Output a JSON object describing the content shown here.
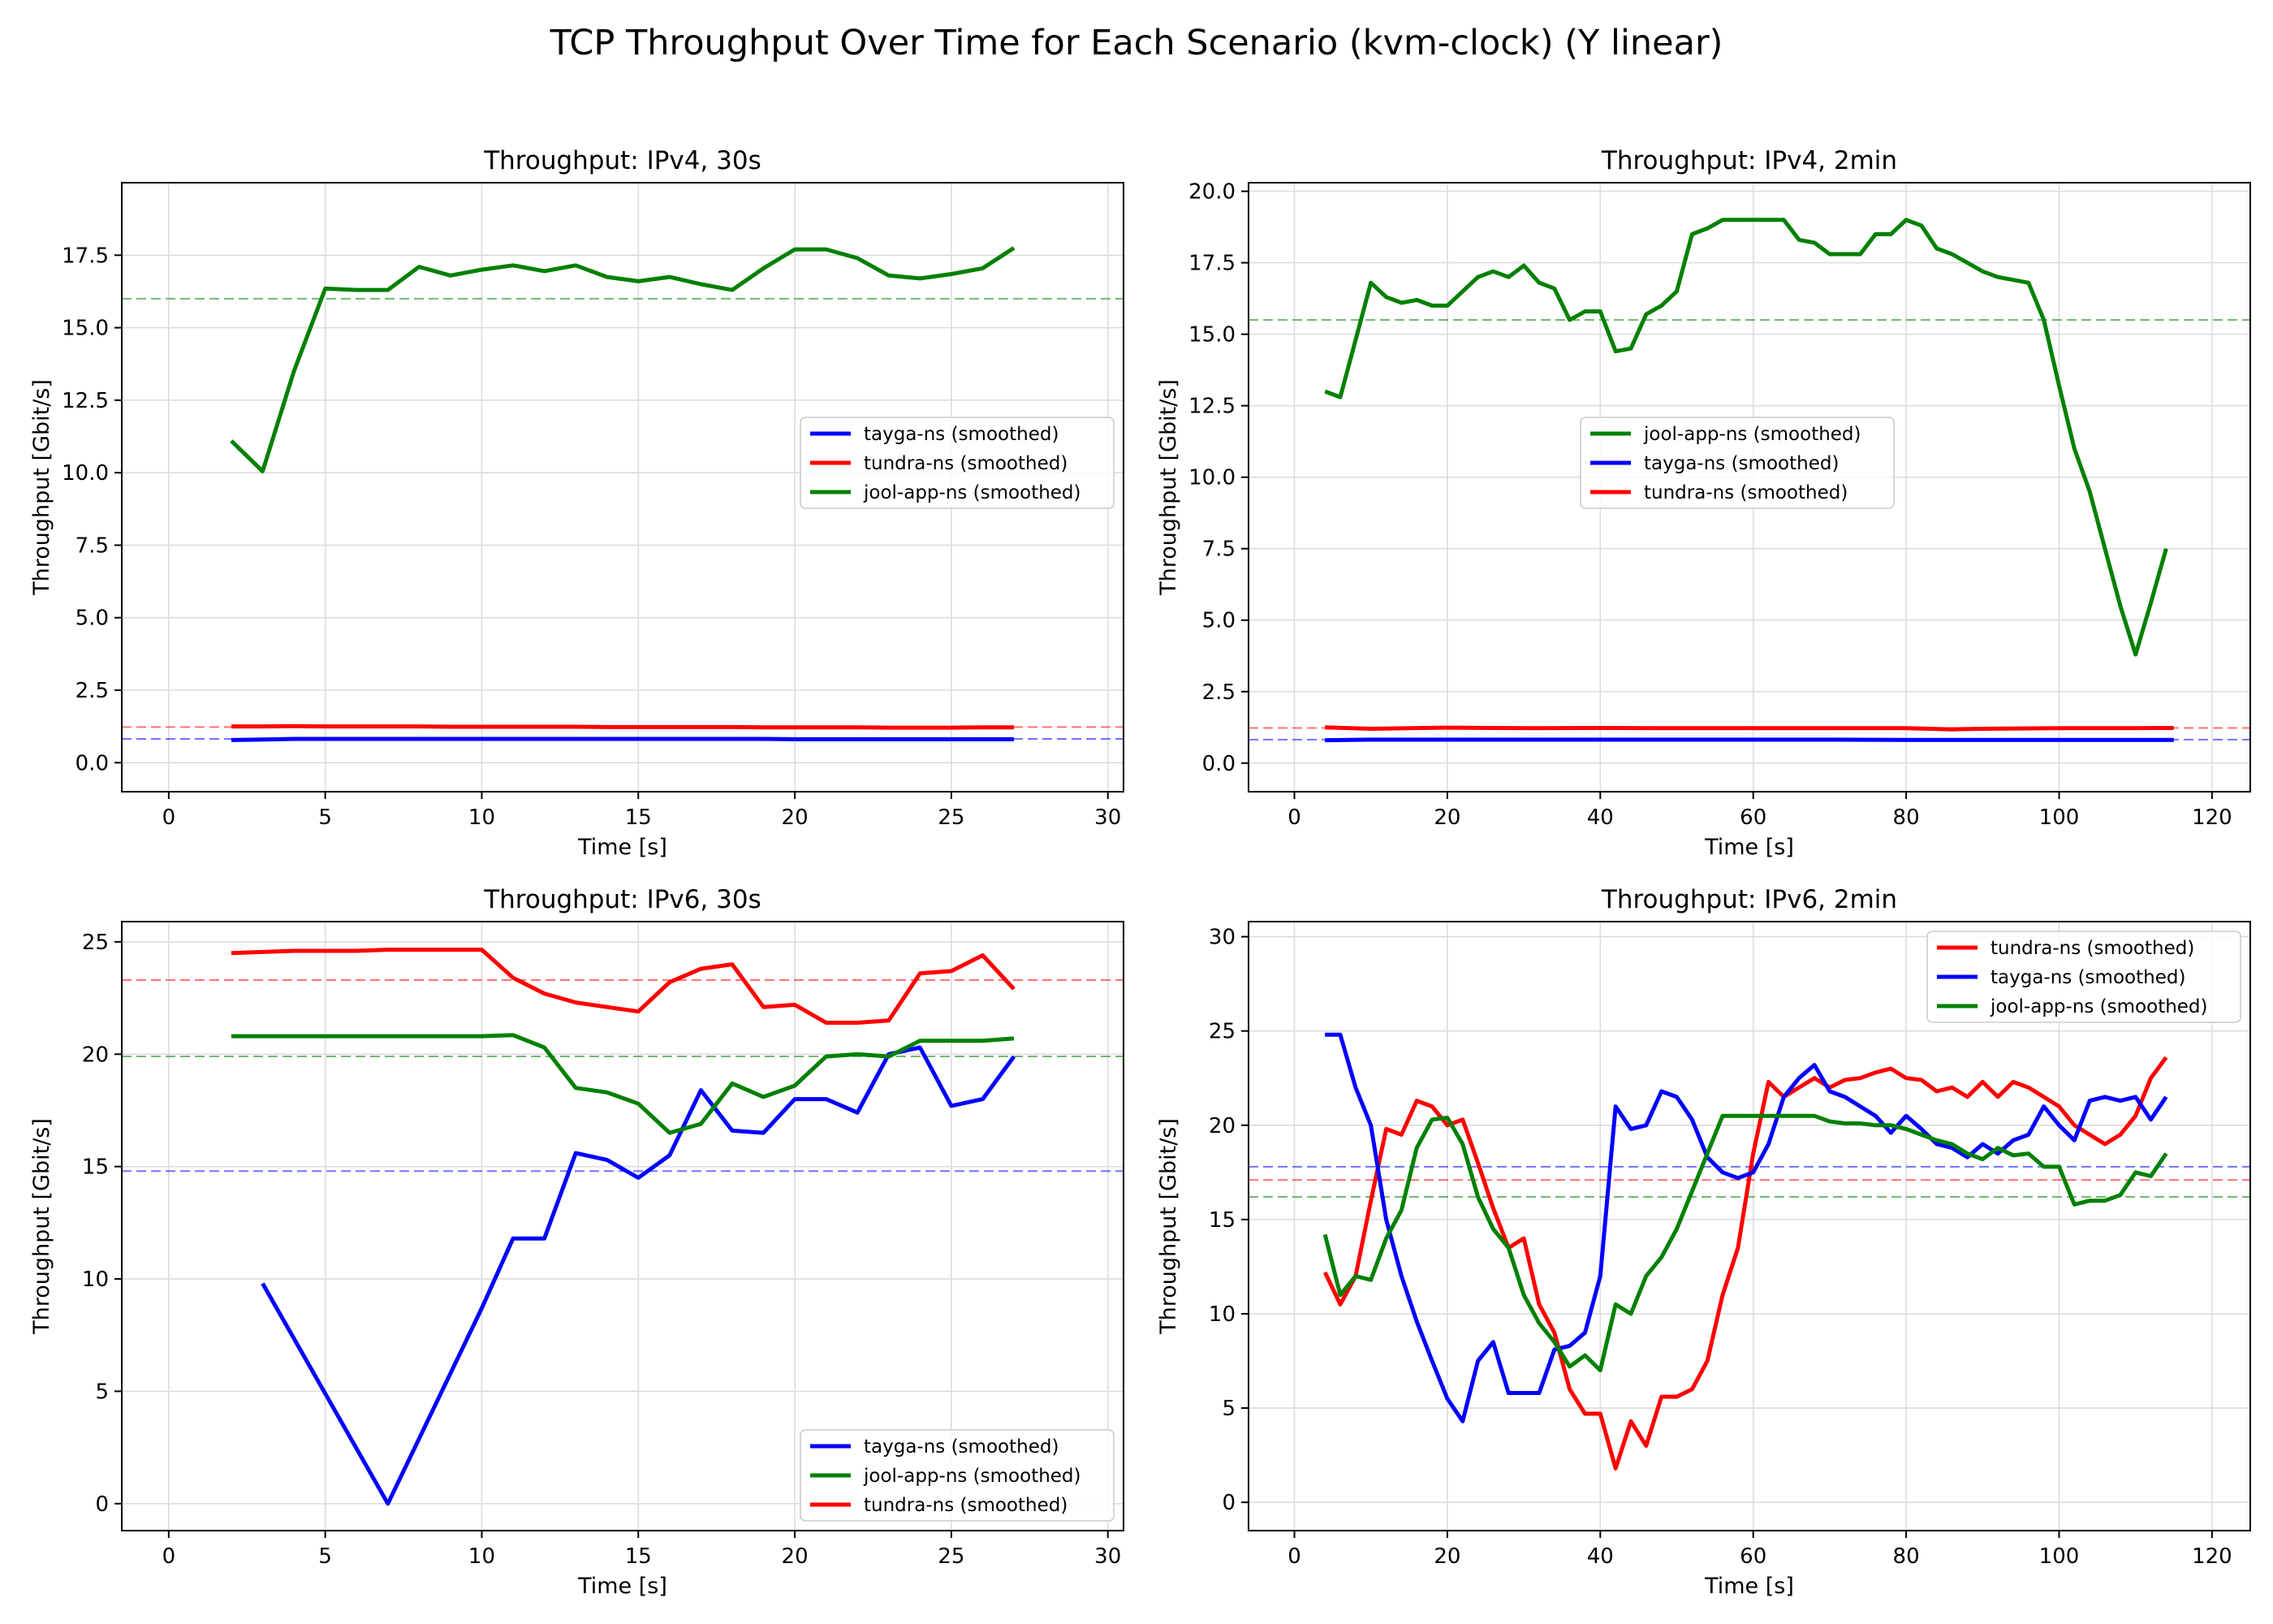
{
  "figure": {
    "suptitle": "TCP Throughput Over Time for Each Scenario (kvm-clock) (Y linear)"
  },
  "colors": {
    "tayga": "#0000ff",
    "tundra": "#ff0000",
    "jool": "#008000"
  },
  "chart_data": [
    {
      "type": "line",
      "title": "Throughput: IPv4, 30s",
      "xlabel": "Time [s]",
      "ylabel": "Throughput [Gbit/s]",
      "xlim": [
        -1.5,
        30.5
      ],
      "ylim": [
        -1,
        20
      ],
      "xticks": [
        0,
        5,
        10,
        15,
        20,
        25,
        30
      ],
      "yticks": [
        0.0,
        2.5,
        5.0,
        7.5,
        10.0,
        12.5,
        15.0,
        17.5
      ],
      "ytick_decimals": 1,
      "grid": true,
      "legend_placement": "center-right",
      "legend_order": [
        "tayga",
        "tundra",
        "jool"
      ],
      "series": [
        {
          "key": "tayga",
          "name": "tayga-ns (smoothed)",
          "color": "#0000ff",
          "x": [
            2,
            3,
            4,
            5,
            6,
            7,
            8,
            9,
            10,
            11,
            12,
            13,
            14,
            15,
            16,
            17,
            18,
            19,
            20,
            21,
            22,
            23,
            24,
            25,
            26,
            27
          ],
          "y": [
            0.78,
            0.8,
            0.82,
            0.82,
            0.82,
            0.82,
            0.82,
            0.82,
            0.82,
            0.82,
            0.82,
            0.82,
            0.82,
            0.82,
            0.82,
            0.82,
            0.82,
            0.82,
            0.81,
            0.81,
            0.81,
            0.81,
            0.81,
            0.81,
            0.81,
            0.81
          ],
          "mean": 0.82
        },
        {
          "key": "tundra",
          "name": "tundra-ns (smoothed)",
          "color": "#ff0000",
          "x": [
            2,
            3,
            4,
            5,
            6,
            7,
            8,
            9,
            10,
            11,
            12,
            13,
            14,
            15,
            16,
            17,
            18,
            19,
            20,
            21,
            22,
            23,
            24,
            25,
            26,
            27
          ],
          "y": [
            1.25,
            1.25,
            1.26,
            1.25,
            1.25,
            1.25,
            1.25,
            1.24,
            1.24,
            1.24,
            1.24,
            1.24,
            1.23,
            1.23,
            1.23,
            1.23,
            1.23,
            1.22,
            1.22,
            1.22,
            1.22,
            1.21,
            1.21,
            1.21,
            1.22,
            1.22
          ],
          "mean": 1.23
        },
        {
          "key": "jool",
          "name": "jool-app-ns (smoothed)",
          "color": "#008000",
          "x": [
            2,
            3,
            4,
            5,
            6,
            7,
            8,
            9,
            10,
            11,
            12,
            13,
            14,
            15,
            16,
            17,
            18,
            19,
            20,
            21,
            22,
            23,
            24,
            25,
            26,
            27
          ],
          "y": [
            11.1,
            10.05,
            13.5,
            16.35,
            16.3,
            16.3,
            17.1,
            16.8,
            17.0,
            17.15,
            16.95,
            17.15,
            16.75,
            16.6,
            16.75,
            16.5,
            16.3,
            17.05,
            17.7,
            17.7,
            17.4,
            16.8,
            16.7,
            16.85,
            17.05,
            17.75
          ],
          "mean": 16.0
        }
      ]
    },
    {
      "type": "line",
      "title": "Throughput: IPv4, 2min",
      "xlabel": "Time [s]",
      "ylabel": "Throughput [Gbit/s]",
      "xlim": [
        -6,
        125
      ],
      "ylim": [
        -1,
        20.3
      ],
      "xticks": [
        0,
        20,
        40,
        60,
        80,
        100,
        120
      ],
      "yticks": [
        0.0,
        2.5,
        5.0,
        7.5,
        10.0,
        12.5,
        15.0,
        17.5,
        20.0
      ],
      "ytick_decimals": 1,
      "grid": true,
      "legend_placement": "center",
      "legend_order": [
        "jool",
        "tayga",
        "tundra"
      ],
      "series": [
        {
          "key": "jool",
          "name": "jool-app-ns (smoothed)",
          "color": "#008000",
          "x": [
            4,
            6,
            8,
            10,
            12,
            14,
            16,
            18,
            20,
            22,
            24,
            26,
            28,
            30,
            32,
            34,
            36,
            38,
            40,
            42,
            44,
            46,
            48,
            50,
            52,
            54,
            56,
            58,
            60,
            62,
            64,
            66,
            68,
            70,
            72,
            74,
            76,
            78,
            80,
            82,
            84,
            86,
            88,
            90,
            92,
            94,
            96,
            98,
            100,
            102,
            104,
            106,
            108,
            110,
            112,
            114
          ],
          "y": [
            13.0,
            12.8,
            14.8,
            16.8,
            16.3,
            16.1,
            16.2,
            16.0,
            16.0,
            16.5,
            17.0,
            17.2,
            17.0,
            17.4,
            16.8,
            16.6,
            15.5,
            15.8,
            15.8,
            14.4,
            14.5,
            15.7,
            16.0,
            16.5,
            18.5,
            18.7,
            19.0,
            19.0,
            19.0,
            19.0,
            19.0,
            18.3,
            18.2,
            17.8,
            17.8,
            17.8,
            18.5,
            18.5,
            19.0,
            18.8,
            18.0,
            17.8,
            17.5,
            17.2,
            17.0,
            16.9,
            16.8,
            15.5,
            13.2,
            11.0,
            9.5,
            7.5,
            5.5,
            3.8,
            5.6,
            7.5
          ],
          "mean": 15.5
        },
        {
          "key": "tayga",
          "name": "tayga-ns (smoothed)",
          "color": "#0000ff",
          "x": [
            4,
            10,
            20,
            30,
            40,
            50,
            60,
            70,
            80,
            90,
            100,
            110,
            115
          ],
          "y": [
            0.8,
            0.82,
            0.82,
            0.82,
            0.82,
            0.82,
            0.82,
            0.82,
            0.81,
            0.81,
            0.81,
            0.81,
            0.81
          ],
          "mean": 0.82
        },
        {
          "key": "tundra",
          "name": "tundra-ns (smoothed)",
          "color": "#ff0000",
          "x": [
            4,
            10,
            20,
            30,
            40,
            50,
            60,
            70,
            80,
            86,
            90,
            100,
            110,
            115
          ],
          "y": [
            1.25,
            1.2,
            1.24,
            1.22,
            1.23,
            1.22,
            1.22,
            1.22,
            1.22,
            1.18,
            1.2,
            1.22,
            1.22,
            1.23
          ],
          "mean": 1.23
        }
      ]
    },
    {
      "type": "line",
      "title": "Throughput: IPv6, 30s",
      "xlabel": "Time [s]",
      "ylabel": "Throughput [Gbit/s]",
      "xlim": [
        -1.5,
        30.5
      ],
      "ylim": [
        -1.2,
        25.9
      ],
      "xticks": [
        0,
        5,
        10,
        15,
        20,
        25,
        30
      ],
      "yticks": [
        0,
        5,
        10,
        15,
        20,
        25
      ],
      "ytick_decimals": 0,
      "grid": true,
      "legend_placement": "bottom-right",
      "legend_order": [
        "tayga",
        "jool",
        "tundra"
      ],
      "series": [
        {
          "key": "tayga",
          "name": "tayga-ns (smoothed)",
          "color": "#0000ff",
          "x": [
            3,
            7,
            10,
            11,
            12,
            13,
            14,
            15,
            16,
            17,
            18,
            19,
            20,
            21,
            22,
            23,
            24,
            25,
            26,
            27
          ],
          "y": [
            9.8,
            0.0,
            8.7,
            11.8,
            11.8,
            15.6,
            15.3,
            14.5,
            15.5,
            18.4,
            16.6,
            16.5,
            18.0,
            18.0,
            17.4,
            20.0,
            20.3,
            17.7,
            18.0,
            19.9
          ],
          "mean": 14.8
        },
        {
          "key": "jool",
          "name": "jool-app-ns (smoothed)",
          "color": "#008000",
          "x": [
            2,
            3,
            4,
            5,
            6,
            7,
            8,
            9,
            10,
            11,
            12,
            13,
            14,
            15,
            16,
            17,
            18,
            19,
            20,
            21,
            22,
            23,
            24,
            25,
            26,
            27
          ],
          "y": [
            20.8,
            20.8,
            20.8,
            20.8,
            20.8,
            20.8,
            20.8,
            20.8,
            20.8,
            20.85,
            20.3,
            18.5,
            18.3,
            17.8,
            16.5,
            16.9,
            18.7,
            18.1,
            18.6,
            19.9,
            20.0,
            19.9,
            20.6,
            20.6,
            20.6,
            20.7
          ],
          "mean": 19.9
        },
        {
          "key": "tundra",
          "name": "tundra-ns (smoothed)",
          "color": "#ff0000",
          "x": [
            2,
            3,
            4,
            5,
            6,
            7,
            8,
            9,
            10,
            11,
            12,
            13,
            14,
            15,
            16,
            17,
            18,
            19,
            20,
            21,
            22,
            23,
            24,
            25,
            26,
            27
          ],
          "y": [
            24.5,
            24.55,
            24.6,
            24.6,
            24.6,
            24.65,
            24.65,
            24.65,
            24.65,
            23.4,
            22.7,
            22.3,
            22.1,
            21.9,
            23.2,
            23.8,
            24.0,
            22.1,
            22.2,
            21.4,
            21.4,
            21.5,
            23.6,
            23.7,
            24.4,
            22.9
          ],
          "mean": 23.3
        }
      ]
    },
    {
      "type": "line",
      "title": "Throughput: IPv6, 2min",
      "xlabel": "Time [s]",
      "ylabel": "Throughput [Gbit/s]",
      "xlim": [
        -6,
        125
      ],
      "ylim": [
        -1.5,
        30.8
      ],
      "xticks": [
        0,
        20,
        40,
        60,
        80,
        100,
        120
      ],
      "yticks": [
        0,
        5,
        10,
        15,
        20,
        25,
        30
      ],
      "ytick_decimals": 0,
      "grid": true,
      "legend_placement": "top-right",
      "legend_order": [
        "tundra",
        "tayga",
        "jool"
      ],
      "series": [
        {
          "key": "tundra",
          "name": "tundra-ns (smoothed)",
          "color": "#ff0000",
          "x": [
            4,
            6,
            8,
            10,
            12,
            14,
            16,
            18,
            20,
            22,
            24,
            26,
            28,
            30,
            32,
            34,
            36,
            38,
            40,
            42,
            44,
            46,
            48,
            50,
            52,
            54,
            56,
            58,
            60,
            62,
            64,
            66,
            68,
            70,
            72,
            74,
            76,
            78,
            80,
            82,
            84,
            86,
            88,
            90,
            92,
            94,
            96,
            98,
            100,
            102,
            104,
            106,
            108,
            110,
            112,
            114
          ],
          "y": [
            12.2,
            10.5,
            12.0,
            16.0,
            19.8,
            19.5,
            21.3,
            21.0,
            20.0,
            20.3,
            18.0,
            15.6,
            13.5,
            14.0,
            10.5,
            9.0,
            6.0,
            4.7,
            4.7,
            1.8,
            4.3,
            3.0,
            5.6,
            5.6,
            6.0,
            7.5,
            11.0,
            13.5,
            18.5,
            22.3,
            21.5,
            22.0,
            22.5,
            22.0,
            22.4,
            22.5,
            22.8,
            23.0,
            22.5,
            22.4,
            21.8,
            22.0,
            21.5,
            22.3,
            21.5,
            22.3,
            22.0,
            21.5,
            21.0,
            20.0,
            19.5,
            19.0,
            19.5,
            20.5,
            22.5,
            23.6
          ],
          "mean": 17.1
        },
        {
          "key": "tayga",
          "name": "tayga-ns (smoothed)",
          "color": "#0000ff",
          "x": [
            4,
            6,
            8,
            10,
            12,
            14,
            16,
            18,
            20,
            22,
            24,
            26,
            28,
            30,
            32,
            34,
            36,
            38,
            40,
            42,
            44,
            46,
            48,
            50,
            52,
            54,
            56,
            58,
            60,
            62,
            64,
            66,
            68,
            70,
            72,
            74,
            76,
            78,
            80,
            82,
            84,
            86,
            88,
            90,
            92,
            94,
            96,
            98,
            100,
            102,
            104,
            106,
            108,
            110,
            112,
            114
          ],
          "y": [
            24.8,
            24.8,
            22.0,
            20.0,
            15.0,
            12.0,
            9.6,
            7.5,
            5.5,
            4.3,
            7.5,
            8.5,
            5.8,
            5.8,
            5.8,
            8.1,
            8.3,
            9.0,
            12.0,
            21.0,
            19.8,
            20.0,
            21.8,
            21.5,
            20.3,
            18.3,
            17.5,
            17.2,
            17.5,
            19.0,
            21.5,
            22.5,
            23.2,
            21.8,
            21.5,
            21.0,
            20.5,
            19.6,
            20.5,
            19.8,
            19.0,
            18.8,
            18.3,
            19.0,
            18.5,
            19.2,
            19.5,
            21.0,
            20.0,
            19.2,
            21.3,
            21.5,
            21.3,
            21.5,
            20.3,
            21.5
          ],
          "mean": 17.8
        },
        {
          "key": "jool",
          "name": "jool-app-ns (smoothed)",
          "color": "#008000",
          "x": [
            4,
            6,
            8,
            10,
            12,
            14,
            16,
            18,
            20,
            22,
            24,
            26,
            28,
            30,
            32,
            34,
            36,
            38,
            40,
            42,
            44,
            46,
            48,
            50,
            52,
            54,
            56,
            58,
            60,
            62,
            64,
            66,
            68,
            70,
            72,
            74,
            76,
            78,
            80,
            82,
            84,
            86,
            88,
            90,
            92,
            94,
            96,
            98,
            100,
            102,
            104,
            106,
            108,
            110,
            112,
            114
          ],
          "y": [
            14.2,
            11.0,
            12.0,
            11.8,
            14.0,
            15.5,
            18.8,
            20.3,
            20.4,
            19.0,
            16.2,
            14.5,
            13.5,
            11.0,
            9.5,
            8.5,
            7.2,
            7.8,
            7.0,
            10.5,
            10.0,
            12.0,
            13.0,
            14.5,
            16.5,
            18.5,
            20.5,
            20.5,
            20.5,
            20.5,
            20.5,
            20.5,
            20.5,
            20.2,
            20.1,
            20.1,
            20.0,
            20.0,
            19.8,
            19.5,
            19.2,
            19.0,
            18.5,
            18.2,
            18.8,
            18.4,
            18.5,
            17.8,
            17.8,
            15.8,
            16.0,
            16.0,
            16.3,
            17.5,
            17.3,
            18.5
          ],
          "mean": 16.2
        }
      ]
    }
  ]
}
